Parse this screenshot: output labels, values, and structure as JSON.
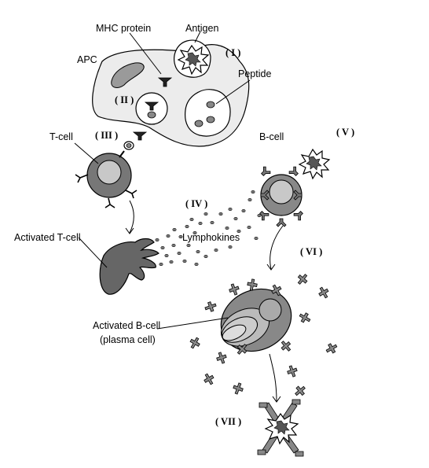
{
  "labels": {
    "mhc_protein": "MHC protein",
    "antigen": "Antigen",
    "apc": "APC",
    "peptide": "Peptide",
    "t_cell": "T-cell",
    "b_cell": "B-cell",
    "lymphokines": "Lymphokines",
    "activated_t_cell": "Activated T-cell",
    "activated_b_cell_line1": "Activated B-cell",
    "activated_b_cell_line2": "(plasma cell)"
  },
  "steps": {
    "i": "( I )",
    "ii": "( II )",
    "iii": "( III )",
    "iv": "( IV )",
    "v": "( V )",
    "vi": "( VI )",
    "vii": "( VII )"
  }
}
